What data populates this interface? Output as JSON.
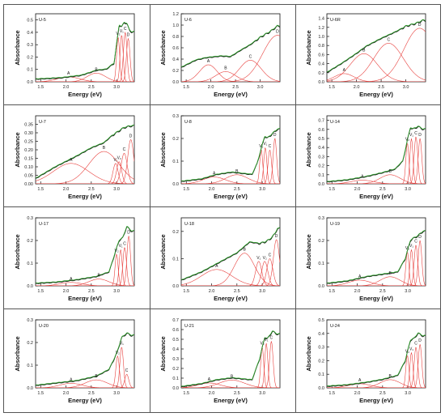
{
  "colors": {
    "fit": "#e8423f",
    "total": "#2f9f2c",
    "exp": "#111111",
    "axis": "#111111"
  },
  "labels": {
    "xlabel": "Energy (eV)",
    "ylabel": "Absorbance"
  },
  "chart_data": [
    {
      "type": "line",
      "title": "U-5",
      "xlim": [
        1.4,
        3.35
      ],
      "xticks": [
        1.5,
        2.0,
        2.5,
        3.0
      ],
      "ylim": [
        0,
        0.55
      ],
      "yticks": [
        0.0,
        0.1,
        0.2,
        0.3,
        0.4,
        0.5
      ],
      "base": [
        [
          1.4,
          0.02
        ],
        [
          1.9,
          0.03
        ],
        [
          2.3,
          0.05
        ],
        [
          2.6,
          0.09
        ],
        [
          2.8,
          0.1
        ],
        [
          2.95,
          0.15
        ],
        [
          3.0,
          0.3
        ],
        [
          3.05,
          0.46
        ],
        [
          3.1,
          0.44
        ],
        [
          3.15,
          0.48
        ],
        [
          3.2,
          0.47
        ],
        [
          3.25,
          0.42
        ],
        [
          3.3,
          0.4
        ]
      ],
      "peaks": [
        {
          "label": "A",
          "c": 2.05,
          "h": 0.04,
          "w": 0.22
        },
        {
          "label": "B",
          "c": 2.6,
          "h": 0.07,
          "w": 0.18
        },
        {
          "label": "V₂",
          "c": 3.03,
          "h": 0.36,
          "w": 0.03
        },
        {
          "label": "V₁",
          "c": 3.1,
          "h": 0.38,
          "w": 0.03
        },
        {
          "label": "C",
          "c": 3.17,
          "h": 0.4,
          "w": 0.035
        },
        {
          "label": "D",
          "c": 3.23,
          "h": 0.35,
          "w": 0.035
        }
      ]
    },
    {
      "type": "line",
      "title": "U-6",
      "xlim": [
        1.4,
        3.4
      ],
      "xticks": [
        1.5,
        2.0,
        2.5,
        3.0
      ],
      "ylim": [
        0,
        1.2
      ],
      "yticks": [
        0.0,
        0.2,
        0.4,
        0.6,
        0.8,
        1.0,
        1.2
      ],
      "base": [
        [
          1.4,
          0.25
        ],
        [
          1.7,
          0.38
        ],
        [
          1.9,
          0.42
        ],
        [
          2.2,
          0.45
        ],
        [
          2.4,
          0.44
        ],
        [
          2.6,
          0.55
        ],
        [
          2.8,
          0.65
        ],
        [
          3.0,
          0.78
        ],
        [
          3.2,
          0.88
        ],
        [
          3.35,
          0.98
        ]
      ],
      "peaks": [
        {
          "label": "A",
          "c": 1.95,
          "h": 0.3,
          "w": 0.18
        },
        {
          "label": "B",
          "c": 2.3,
          "h": 0.18,
          "w": 0.2
        },
        {
          "label": "C",
          "c": 2.8,
          "h": 0.38,
          "w": 0.22
        },
        {
          "label": "D",
          "c": 3.35,
          "h": 0.82,
          "w": 0.3
        }
      ]
    },
    {
      "type": "line",
      "title": "U-6R",
      "xlim": [
        1.4,
        3.4
      ],
      "xticks": [
        1.5,
        2.0,
        2.5,
        3.0
      ],
      "ylim": [
        0,
        1.5
      ],
      "yticks": [
        0.0,
        0.2,
        0.4,
        0.6,
        0.8,
        1.0,
        1.2,
        1.4
      ],
      "base": [
        [
          1.4,
          0.2
        ],
        [
          1.7,
          0.4
        ],
        [
          2.0,
          0.62
        ],
        [
          2.2,
          0.78
        ],
        [
          2.5,
          0.95
        ],
        [
          2.8,
          1.1
        ],
        [
          3.0,
          1.22
        ],
        [
          3.2,
          1.28
        ],
        [
          3.35,
          1.35
        ]
      ],
      "peaks": [
        {
          "label": "A",
          "c": 1.75,
          "h": 0.18,
          "w": 0.2
        },
        {
          "label": "B",
          "c": 2.15,
          "h": 0.62,
          "w": 0.28
        },
        {
          "label": "C",
          "c": 2.65,
          "h": 0.85,
          "w": 0.3
        },
        {
          "label": "D",
          "c": 3.28,
          "h": 1.18,
          "w": 0.32
        }
      ]
    },
    {
      "type": "line",
      "title": "U-7",
      "xlim": [
        1.4,
        3.35
      ],
      "xticks": [
        1.5,
        2.0,
        2.5,
        3.0
      ],
      "ylim": [
        0,
        0.4
      ],
      "yticks": [
        0.0,
        0.05,
        0.1,
        0.15,
        0.2,
        0.25,
        0.3,
        0.35
      ],
      "base": [
        [
          1.4,
          0.03
        ],
        [
          1.8,
          0.1
        ],
        [
          2.2,
          0.16
        ],
        [
          2.5,
          0.21
        ],
        [
          2.75,
          0.24
        ],
        [
          2.9,
          0.28
        ],
        [
          3.05,
          0.31
        ],
        [
          3.15,
          0.33
        ],
        [
          3.3,
          0.34
        ]
      ],
      "peaks": [
        {
          "label": "A",
          "c": 2.1,
          "h": 0.12,
          "w": 0.35
        },
        {
          "label": "B",
          "c": 2.75,
          "h": 0.19,
          "w": 0.3
        },
        {
          "label": "V₁",
          "c": 2.98,
          "h": 0.12,
          "w": 0.05
        },
        {
          "label": "V₂",
          "c": 3.05,
          "h": 0.13,
          "w": 0.05
        },
        {
          "label": "C",
          "c": 3.15,
          "h": 0.18,
          "w": 0.06
        },
        {
          "label": "D",
          "c": 3.28,
          "h": 0.26,
          "w": 0.06
        }
      ]
    },
    {
      "type": "line",
      "title": "U-8",
      "xlim": [
        1.4,
        3.35
      ],
      "xticks": [
        1.5,
        2.0,
        2.5,
        3.0
      ],
      "ylim": [
        0,
        0.3
      ],
      "yticks": [
        0.0,
        0.1,
        0.2,
        0.3
      ],
      "base": [
        [
          1.4,
          0.01
        ],
        [
          1.8,
          0.02
        ],
        [
          2.1,
          0.04
        ],
        [
          2.4,
          0.05
        ],
        [
          2.6,
          0.045
        ],
        [
          2.8,
          0.04
        ],
        [
          2.9,
          0.09
        ],
        [
          3.0,
          0.17
        ],
        [
          3.05,
          0.21
        ],
        [
          3.1,
          0.2
        ],
        [
          3.2,
          0.22
        ],
        [
          3.3,
          0.24
        ]
      ],
      "peaks": [
        {
          "label": "A",
          "c": 2.05,
          "h": 0.03,
          "w": 0.22
        },
        {
          "label": "B",
          "c": 2.5,
          "h": 0.04,
          "w": 0.22
        },
        {
          "label": "V₂",
          "c": 2.98,
          "h": 0.15,
          "w": 0.03
        },
        {
          "label": "V₁",
          "c": 3.06,
          "h": 0.16,
          "w": 0.03
        },
        {
          "label": "C",
          "c": 3.15,
          "h": 0.15,
          "w": 0.035
        },
        {
          "label": "D",
          "c": 3.25,
          "h": 0.2,
          "w": 0.035
        }
      ]
    },
    {
      "type": "line",
      "title": "U-14",
      "xlim": [
        1.4,
        3.35
      ],
      "xticks": [
        1.5,
        2.0,
        2.5,
        3.0
      ],
      "ylim": [
        0,
        0.75
      ],
      "yticks": [
        0.0,
        0.1,
        0.2,
        0.3,
        0.4,
        0.5,
        0.6,
        0.7
      ],
      "base": [
        [
          1.4,
          0.02
        ],
        [
          1.8,
          0.04
        ],
        [
          2.2,
          0.08
        ],
        [
          2.5,
          0.12
        ],
        [
          2.75,
          0.16
        ],
        [
          2.9,
          0.25
        ],
        [
          3.0,
          0.5
        ],
        [
          3.05,
          0.62
        ],
        [
          3.1,
          0.6
        ],
        [
          3.2,
          0.63
        ],
        [
          3.3,
          0.6
        ]
      ],
      "peaks": [
        {
          "label": "A",
          "c": 2.1,
          "h": 0.04,
          "w": 0.22
        },
        {
          "label": "B",
          "c": 2.65,
          "h": 0.1,
          "w": 0.2
        },
        {
          "label": "V₂",
          "c": 2.99,
          "h": 0.45,
          "w": 0.03
        },
        {
          "label": "V₁",
          "c": 3.07,
          "h": 0.5,
          "w": 0.03
        },
        {
          "label": "C",
          "c": 3.16,
          "h": 0.52,
          "w": 0.035
        },
        {
          "label": "D",
          "c": 3.24,
          "h": 0.5,
          "w": 0.035
        }
      ]
    },
    {
      "type": "line",
      "title": "U-17",
      "xlim": [
        1.4,
        3.35
      ],
      "xticks": [
        1.5,
        2.0,
        2.5,
        3.0
      ],
      "ylim": [
        0,
        0.3
      ],
      "yticks": [
        0.0,
        0.1,
        0.2,
        0.3
      ],
      "base": [
        [
          1.4,
          0.01
        ],
        [
          1.8,
          0.015
        ],
        [
          2.2,
          0.025
        ],
        [
          2.6,
          0.04
        ],
        [
          2.85,
          0.06
        ],
        [
          2.95,
          0.13
        ],
        [
          3.05,
          0.2
        ],
        [
          3.12,
          0.21
        ],
        [
          3.2,
          0.26
        ],
        [
          3.3,
          0.24
        ]
      ],
      "peaks": [
        {
          "label": "A",
          "c": 2.1,
          "h": 0.015,
          "w": 0.22
        },
        {
          "label": "B",
          "c": 2.65,
          "h": 0.03,
          "w": 0.2
        },
        {
          "label": "V₂",
          "c": 3.0,
          "h": 0.14,
          "w": 0.03
        },
        {
          "label": "V₁",
          "c": 3.08,
          "h": 0.16,
          "w": 0.03
        },
        {
          "label": "C",
          "c": 3.16,
          "h": 0.17,
          "w": 0.035
        },
        {
          "label": "D",
          "c": 3.24,
          "h": 0.22,
          "w": 0.035
        }
      ]
    },
    {
      "type": "line",
      "title": "U-18",
      "xlim": [
        1.4,
        3.35
      ],
      "xticks": [
        1.5,
        2.0,
        2.5,
        3.0
      ],
      "ylim": [
        0,
        0.25
      ],
      "yticks": [
        0.0,
        0.1,
        0.2
      ],
      "base": [
        [
          1.4,
          0.02
        ],
        [
          1.8,
          0.05
        ],
        [
          2.2,
          0.09
        ],
        [
          2.5,
          0.12
        ],
        [
          2.75,
          0.16
        ],
        [
          2.95,
          0.155
        ],
        [
          3.05,
          0.16
        ],
        [
          3.15,
          0.17
        ],
        [
          3.25,
          0.19
        ],
        [
          3.3,
          0.21
        ]
      ],
      "peaks": [
        {
          "label": "A",
          "c": 2.1,
          "h": 0.06,
          "w": 0.3
        },
        {
          "label": "B",
          "c": 2.65,
          "h": 0.12,
          "w": 0.2
        },
        {
          "label": "V₁",
          "c": 2.93,
          "h": 0.09,
          "w": 0.06
        },
        {
          "label": "V₂",
          "c": 3.05,
          "h": 0.09,
          "w": 0.06
        },
        {
          "label": "C",
          "c": 3.15,
          "h": 0.1,
          "w": 0.06
        },
        {
          "label": "D",
          "c": 3.28,
          "h": 0.17,
          "w": 0.06
        }
      ]
    },
    {
      "type": "line",
      "title": "U-19",
      "xlim": [
        1.4,
        3.35
      ],
      "xticks": [
        1.5,
        2.0,
        2.5,
        3.0
      ],
      "ylim": [
        0,
        0.3
      ],
      "yticks": [
        0.0,
        0.1,
        0.2,
        0.3
      ],
      "base": [
        [
          1.4,
          0.01
        ],
        [
          1.8,
          0.02
        ],
        [
          2.2,
          0.04
        ],
        [
          2.5,
          0.05
        ],
        [
          2.8,
          0.06
        ],
        [
          2.95,
          0.12
        ],
        [
          3.05,
          0.2
        ],
        [
          3.12,
          0.21
        ],
        [
          3.2,
          0.22
        ],
        [
          3.3,
          0.24
        ]
      ],
      "peaks": [
        {
          "label": "A",
          "c": 2.05,
          "h": 0.025,
          "w": 0.22
        },
        {
          "label": "B",
          "c": 2.65,
          "h": 0.04,
          "w": 0.2
        },
        {
          "label": "V₂",
          "c": 2.99,
          "h": 0.15,
          "w": 0.03
        },
        {
          "label": "V₁",
          "c": 3.07,
          "h": 0.16,
          "w": 0.03
        },
        {
          "label": "C",
          "c": 3.16,
          "h": 0.18,
          "w": 0.035
        },
        {
          "label": "D",
          "c": 3.24,
          "h": 0.2,
          "w": 0.035
        }
      ]
    },
    {
      "type": "line",
      "title": "U-20",
      "xlim": [
        1.4,
        3.35
      ],
      "xticks": [
        1.5,
        2.0,
        2.5,
        3.0
      ],
      "ylim": [
        0,
        0.3
      ],
      "yticks": [
        0.0,
        0.1,
        0.2,
        0.3
      ],
      "base": [
        [
          1.4,
          0.01
        ],
        [
          1.8,
          0.02
        ],
        [
          2.2,
          0.03
        ],
        [
          2.6,
          0.05
        ],
        [
          2.85,
          0.08
        ],
        [
          3.0,
          0.15
        ],
        [
          3.1,
          0.22
        ],
        [
          3.2,
          0.24
        ],
        [
          3.3,
          0.23
        ]
      ],
      "peaks": [
        {
          "label": "A",
          "c": 2.1,
          "h": 0.02,
          "w": 0.22
        },
        {
          "label": "B",
          "c": 2.6,
          "h": 0.035,
          "w": 0.22
        },
        {
          "label": "V₂",
          "c": 3.02,
          "h": 0.14,
          "w": 0.035
        },
        {
          "label": "V₁",
          "c": 3.1,
          "h": 0.18,
          "w": 0.035
        },
        {
          "label": "C",
          "c": 3.2,
          "h": 0.06,
          "w": 0.04
        }
      ]
    },
    {
      "type": "line",
      "title": "U-21",
      "xlim": [
        1.4,
        3.35
      ],
      "xticks": [
        1.5,
        2.0,
        2.5,
        3.0
      ],
      "ylim": [
        0,
        0.7
      ],
      "yticks": [
        0.0,
        0.1,
        0.2,
        0.3,
        0.4,
        0.5,
        0.6,
        0.7
      ],
      "base": [
        [
          1.4,
          0.01
        ],
        [
          1.8,
          0.04
        ],
        [
          2.1,
          0.08
        ],
        [
          2.4,
          0.1
        ],
        [
          2.6,
          0.09
        ],
        [
          2.8,
          0.08
        ],
        [
          2.95,
          0.3
        ],
        [
          3.05,
          0.52
        ],
        [
          3.1,
          0.5
        ],
        [
          3.2,
          0.58
        ],
        [
          3.3,
          0.55
        ]
      ],
      "peaks": [
        {
          "label": "A",
          "c": 1.95,
          "h": 0.05,
          "w": 0.22
        },
        {
          "label": "B",
          "c": 2.4,
          "h": 0.08,
          "w": 0.25
        },
        {
          "label": "V₂",
          "c": 3.0,
          "h": 0.42,
          "w": 0.03
        },
        {
          "label": "V₁",
          "c": 3.08,
          "h": 0.46,
          "w": 0.03
        },
        {
          "label": "C",
          "c": 3.18,
          "h": 0.48,
          "w": 0.035
        }
      ]
    },
    {
      "type": "line",
      "title": "U-24",
      "xlim": [
        1.4,
        3.35
      ],
      "xticks": [
        1.5,
        2.0,
        2.5,
        3.0
      ],
      "ylim": [
        0,
        0.5
      ],
      "yticks": [
        0.0,
        0.1,
        0.2,
        0.3,
        0.4,
        0.5
      ],
      "base": [
        [
          1.4,
          0.01
        ],
        [
          1.8,
          0.02
        ],
        [
          2.2,
          0.04
        ],
        [
          2.5,
          0.06
        ],
        [
          2.8,
          0.09
        ],
        [
          2.95,
          0.2
        ],
        [
          3.05,
          0.35
        ],
        [
          3.12,
          0.36
        ],
        [
          3.2,
          0.4
        ],
        [
          3.3,
          0.38
        ]
      ],
      "peaks": [
        {
          "label": "A",
          "c": 2.05,
          "h": 0.03,
          "w": 0.22
        },
        {
          "label": "B",
          "c": 2.65,
          "h": 0.06,
          "w": 0.2
        },
        {
          "label": "V₂",
          "c": 2.99,
          "h": 0.24,
          "w": 0.03
        },
        {
          "label": "V₁",
          "c": 3.07,
          "h": 0.26,
          "w": 0.03
        },
        {
          "label": "C",
          "c": 3.16,
          "h": 0.3,
          "w": 0.035
        },
        {
          "label": "D",
          "c": 3.24,
          "h": 0.32,
          "w": 0.035
        }
      ]
    }
  ]
}
